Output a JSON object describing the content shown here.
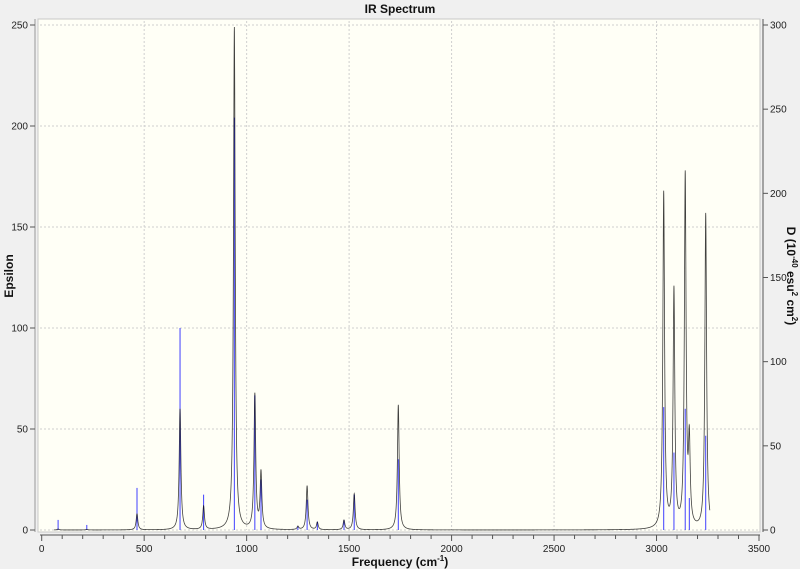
{
  "chart_data": {
    "type": "line",
    "title": "IR Spectrum",
    "xlabel": "Frequency (cm",
    "xlabel_sup": "-1",
    "xlabel_end": ")",
    "ylabel": "Epsilon",
    "ylabel_right": {
      "p1": "D (10",
      "s1": "-40",
      "p2": " esu",
      "s2": "2",
      "p3": " cm",
      "s3": "2",
      "p4": ")"
    },
    "xlim": [
      0,
      3500
    ],
    "ylim": [
      0,
      250
    ],
    "ylim_right": [
      0,
      300
    ],
    "xticks": [
      0,
      500,
      1000,
      1500,
      2000,
      2500,
      3000,
      3500
    ],
    "yticks": [
      0,
      50,
      100,
      150,
      200,
      250
    ],
    "yticks_right": [
      0,
      50,
      100,
      150,
      200,
      250,
      300
    ],
    "grid": true,
    "colors": {
      "curve": "#000000",
      "sticks": "#4040ff",
      "plot_bg": "#fffff6"
    },
    "curve_range": [
      60,
      3260
    ],
    "peaks": [
      {
        "freq": 80,
        "epsilon": 0.5,
        "D": 6
      },
      {
        "freq": 220,
        "epsilon": 0.3,
        "D": 3
      },
      {
        "freq": 465,
        "epsilon": 8,
        "D": 25
      },
      {
        "freq": 675,
        "epsilon": 60,
        "D": 120
      },
      {
        "freq": 790,
        "epsilon": 12,
        "D": 21
      },
      {
        "freq": 940,
        "epsilon": 249,
        "D": 245
      },
      {
        "freq": 1040,
        "epsilon": 68,
        "D": 80
      },
      {
        "freq": 1070,
        "epsilon": 30,
        "D": 30
      },
      {
        "freq": 1250,
        "epsilon": 2,
        "D": 2
      },
      {
        "freq": 1295,
        "epsilon": 22,
        "D": 18
      },
      {
        "freq": 1345,
        "epsilon": 4,
        "D": 5
      },
      {
        "freq": 1475,
        "epsilon": 5,
        "D": 6
      },
      {
        "freq": 1525,
        "epsilon": 18,
        "D": 21
      },
      {
        "freq": 1740,
        "epsilon": 62,
        "D": 42
      },
      {
        "freq": 3035,
        "epsilon": 168,
        "D": 73
      },
      {
        "freq": 3085,
        "epsilon": 121,
        "D": 46
      },
      {
        "freq": 3140,
        "epsilon": 178,
        "D": 72
      },
      {
        "freq": 3160,
        "epsilon": 52,
        "D": 19
      },
      {
        "freq": 3240,
        "epsilon": 157,
        "D": 56
      }
    ]
  }
}
